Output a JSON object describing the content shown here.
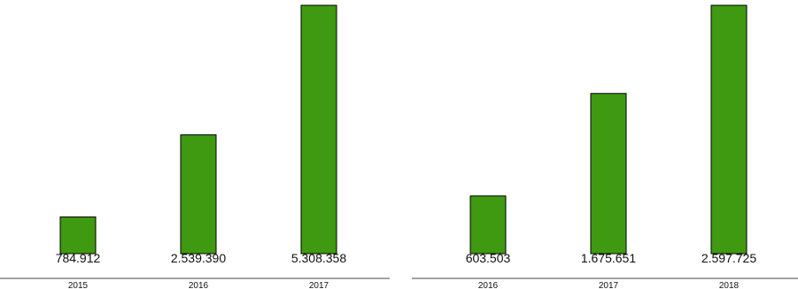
{
  "colors": {
    "bar": "#3f9911",
    "bar_stroke": "#000000",
    "axis": "#444444"
  },
  "chart_data": [
    {
      "type": "bar",
      "categories": [
        "2015",
        "2016",
        "2017"
      ],
      "values": [
        784912,
        2539390,
        5308358
      ],
      "value_labels": [
        "784.912",
        "2.539.390",
        "5.308.358"
      ],
      "title": "",
      "xlabel": "",
      "ylabel": "",
      "ylim": [
        0,
        5308358
      ],
      "grid": false
    },
    {
      "type": "bar",
      "categories": [
        "2016",
        "2017",
        "2018"
      ],
      "values": [
        603503,
        1675651,
        2597725
      ],
      "value_labels": [
        "603.503",
        "1.675.651",
        "2.597.725"
      ],
      "title": "",
      "xlabel": "",
      "ylabel": "",
      "ylim": [
        0,
        2597725
      ],
      "grid": false
    }
  ]
}
